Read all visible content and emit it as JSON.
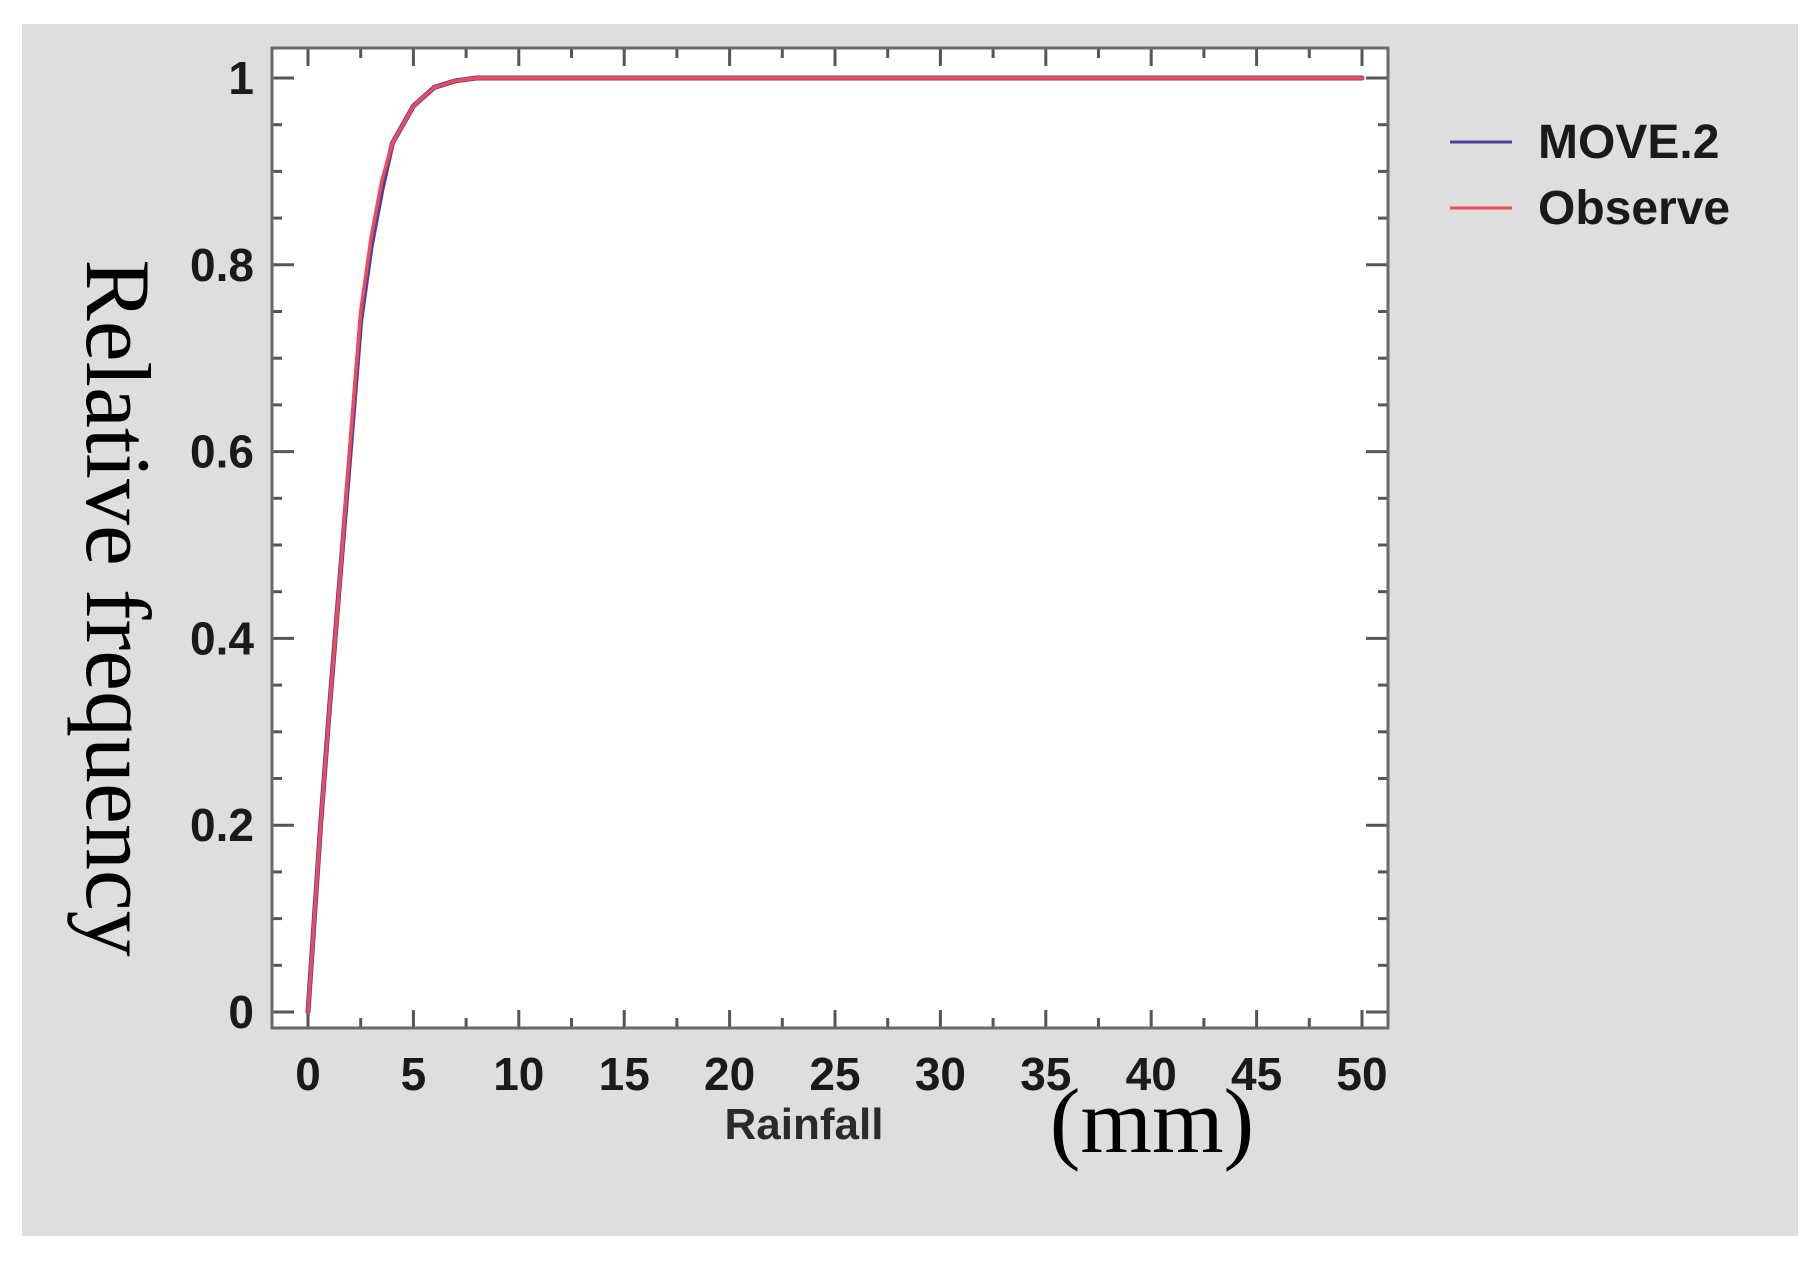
{
  "chart_data": {
    "type": "line",
    "title": "",
    "xlabel": "Rainfall",
    "xlabel_unit": "(mm)",
    "ylabel": "Relative frequency",
    "xlim": [
      0,
      50
    ],
    "ylim": [
      0,
      1
    ],
    "x_ticks": [
      "0",
      "5",
      "10",
      "15",
      "20",
      "25",
      "30",
      "35",
      "40",
      "45",
      "50"
    ],
    "y_ticks": [
      "0",
      "0.2",
      "0.4",
      "0.6",
      "0.8",
      "1"
    ],
    "grid": false,
    "legend_position": "outside-top-right",
    "series": [
      {
        "name": "MOVE.2",
        "color": "#4b3fa0",
        "x": [
          0,
          0.3,
          0.6,
          1,
          1.5,
          2,
          2.5,
          3,
          3.5,
          4,
          5,
          6,
          7,
          8,
          9,
          10,
          20,
          30,
          40,
          50
        ],
        "y": [
          0,
          0.1,
          0.2,
          0.32,
          0.46,
          0.6,
          0.74,
          0.82,
          0.88,
          0.93,
          0.97,
          0.99,
          0.997,
          1,
          1,
          1,
          1,
          1,
          1,
          1
        ]
      },
      {
        "name": "Observe",
        "color": "#f04a5a",
        "x": [
          0,
          0.3,
          0.6,
          1,
          1.5,
          2,
          2.5,
          3,
          3.5,
          4,
          5,
          6,
          7,
          8,
          9,
          10,
          20,
          30,
          40,
          50
        ],
        "y": [
          0,
          0.1,
          0.2,
          0.32,
          0.46,
          0.61,
          0.75,
          0.83,
          0.89,
          0.93,
          0.97,
          0.99,
          0.997,
          1,
          1,
          1,
          1,
          1,
          1,
          1
        ]
      }
    ]
  }
}
